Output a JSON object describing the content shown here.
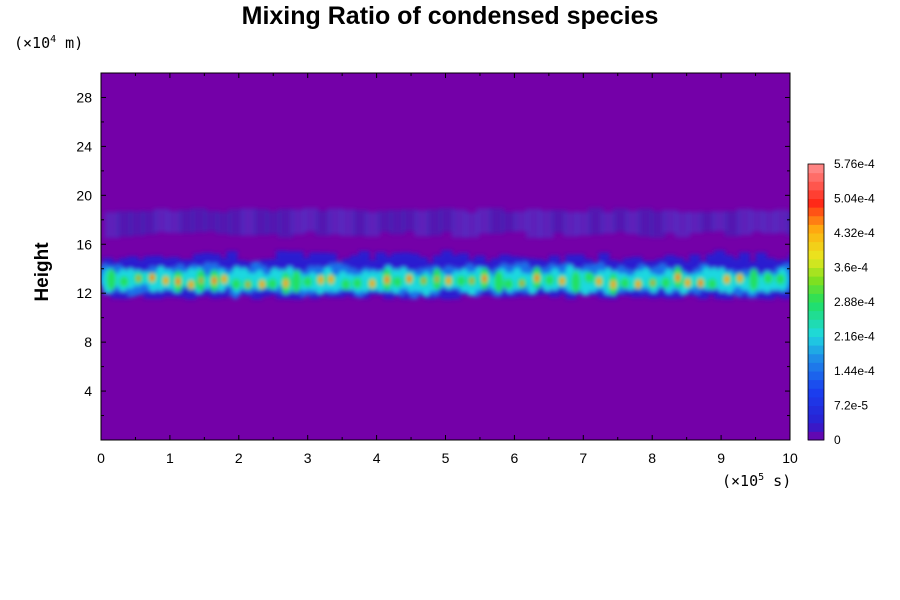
{
  "chart_data": {
    "type": "heatmap",
    "title": "Mixing Ratio of condensed species",
    "xlabel": "",
    "ylabel": "Height",
    "x_unit": {
      "prefix": "(×10",
      "exp": "5",
      "suffix": " s)"
    },
    "y_unit": {
      "prefix": "(×10",
      "exp": "4",
      "suffix": " m)"
    },
    "xlim": [
      0,
      10
    ],
    "ylim": [
      0,
      30
    ],
    "x_ticks": [
      "0",
      "1",
      "2",
      "3",
      "4",
      "5",
      "6",
      "7",
      "8",
      "9",
      "10"
    ],
    "y_ticks": [
      "4",
      "8",
      "12",
      "16",
      "20",
      "24",
      "28"
    ],
    "colorbar": {
      "range": [
        0,
        0.000576
      ],
      "tick_labels": [
        "5.76e-4",
        "5.04e-4",
        "4.32e-4",
        "3.6e-4",
        "2.88e-4",
        "2.16e-4",
        "1.44e-4",
        "7.2e-5",
        "0"
      ],
      "tick_values": [
        0.000576,
        0.000504,
        0.000432,
        0.00036,
        0.000288,
        0.000216,
        0.000144,
        7.2e-05,
        0
      ],
      "colors": [
        "#7400a8",
        "#2a1fd0",
        "#1f6fe8",
        "#1fd8e0",
        "#20e060",
        "#e8e820",
        "#ff9a10",
        "#ff2818",
        "#ff8a8a"
      ]
    },
    "features": {
      "main_layer_height": [
        11.5,
        15.5
      ],
      "peak_height": 13,
      "upper_haze_height": [
        16.5,
        19
      ]
    }
  }
}
